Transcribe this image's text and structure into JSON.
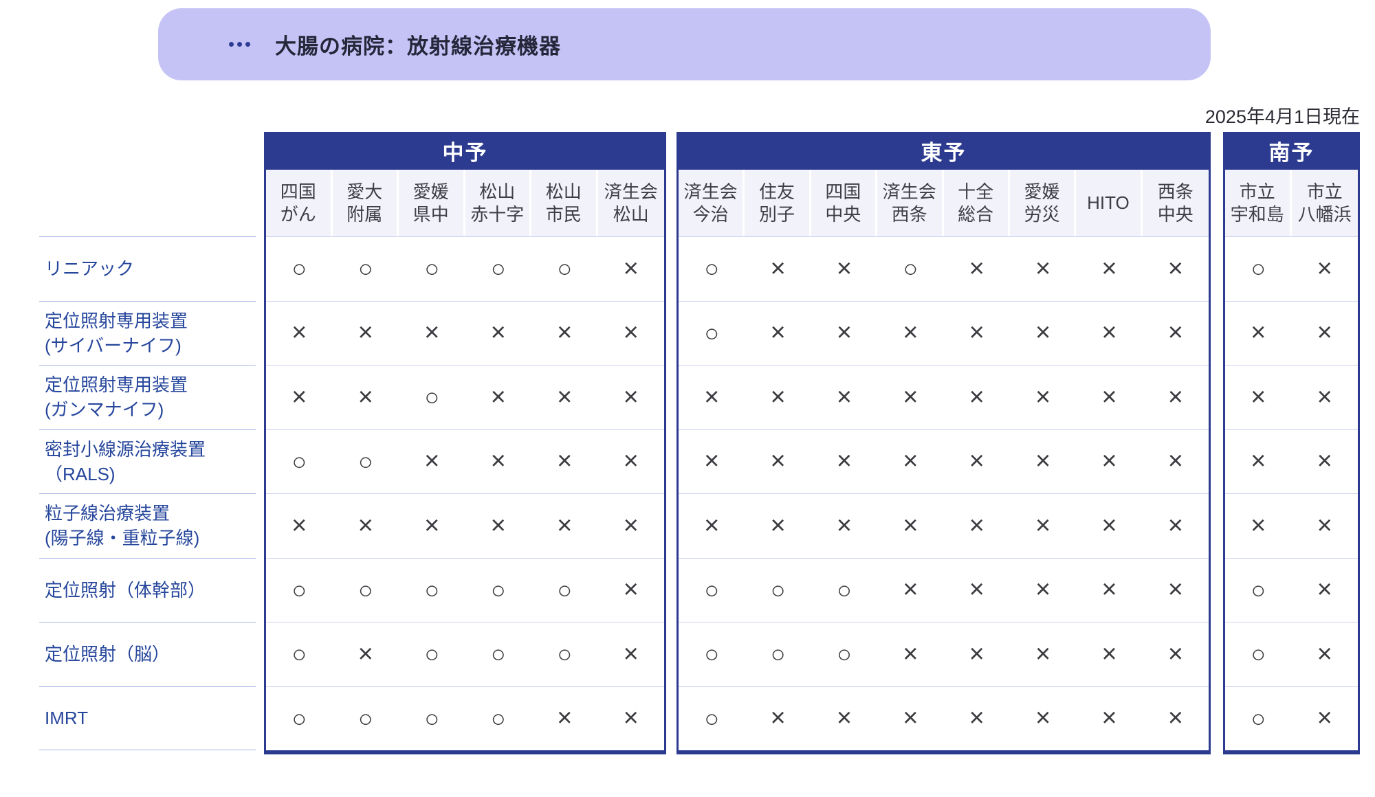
{
  "banner": {
    "title": "大腸の病院：放射線治療機器"
  },
  "date_label": "2025年4月1日現在",
  "colors": {
    "banner_bg": "#c5c3f6",
    "header_navy": "#2c3b90",
    "subheader_bg": "#f2f2fb",
    "row_label_blue": "#26469c",
    "row_separator": "#ccd1f0",
    "label_separator": "#aab3e3",
    "mark_color": "#3b3b40"
  },
  "groups": [
    {
      "name": "中予",
      "hospitals": [
        [
          "四国",
          "がん"
        ],
        [
          "愛大",
          "附属"
        ],
        [
          "愛媛",
          "県中"
        ],
        [
          "松山",
          "赤十字"
        ],
        [
          "松山",
          "市民"
        ],
        [
          "済生会",
          "松山"
        ]
      ]
    },
    {
      "name": "東予",
      "hospitals": [
        [
          "済生会",
          "今治"
        ],
        [
          "住友",
          "別子"
        ],
        [
          "四国",
          "中央"
        ],
        [
          "済生会",
          "西条"
        ],
        [
          "十全",
          "総合"
        ],
        [
          "愛媛",
          "労災"
        ],
        [
          "HITO"
        ],
        [
          "西条",
          "中央"
        ]
      ]
    },
    {
      "name": "南予",
      "hospitals": [
        [
          "市立",
          "宇和島"
        ],
        [
          "市立",
          "八幡浜"
        ]
      ]
    }
  ],
  "rows": [
    {
      "label": [
        "リニアック"
      ],
      "marks": [
        [
          "○",
          "○",
          "○",
          "○",
          "○",
          "×"
        ],
        [
          "○",
          "×",
          "×",
          "○",
          "×",
          "×",
          "×",
          "×"
        ],
        [
          "○",
          "×"
        ]
      ]
    },
    {
      "label": [
        "定位照射専用装置",
        "(サイバーナイフ)"
      ],
      "marks": [
        [
          "×",
          "×",
          "×",
          "×",
          "×",
          "×"
        ],
        [
          "○",
          "×",
          "×",
          "×",
          "×",
          "×",
          "×",
          "×"
        ],
        [
          "×",
          "×"
        ]
      ]
    },
    {
      "label": [
        "定位照射専用装置",
        "(ガンマナイフ)"
      ],
      "marks": [
        [
          "×",
          "×",
          "○",
          "×",
          "×",
          "×"
        ],
        [
          "×",
          "×",
          "×",
          "×",
          "×",
          "×",
          "×",
          "×"
        ],
        [
          "×",
          "×"
        ]
      ]
    },
    {
      "label": [
        "密封小線源治療装置",
        "（RALS)"
      ],
      "marks": [
        [
          "○",
          "○",
          "×",
          "×",
          "×",
          "×"
        ],
        [
          "×",
          "×",
          "×",
          "×",
          "×",
          "×",
          "×",
          "×"
        ],
        [
          "×",
          "×"
        ]
      ]
    },
    {
      "label": [
        "粒子線治療装置",
        "(陽子線・重粒子線)"
      ],
      "marks": [
        [
          "×",
          "×",
          "×",
          "×",
          "×",
          "×"
        ],
        [
          "×",
          "×",
          "×",
          "×",
          "×",
          "×",
          "×",
          "×"
        ],
        [
          "×",
          "×"
        ]
      ]
    },
    {
      "label": [
        "定位照射（体幹部）"
      ],
      "marks": [
        [
          "○",
          "○",
          "○",
          "○",
          "○",
          "×"
        ],
        [
          "○",
          "○",
          "○",
          "×",
          "×",
          "×",
          "×",
          "×"
        ],
        [
          "○",
          "×"
        ]
      ]
    },
    {
      "label": [
        "定位照射（脳）"
      ],
      "marks": [
        [
          "○",
          "×",
          "○",
          "○",
          "○",
          "×"
        ],
        [
          "○",
          "○",
          "○",
          "×",
          "×",
          "×",
          "×",
          "×"
        ],
        [
          "○",
          "×"
        ]
      ]
    },
    {
      "label": [
        "IMRT"
      ],
      "marks": [
        [
          "○",
          "○",
          "○",
          "○",
          "×",
          "×"
        ],
        [
          "○",
          "×",
          "×",
          "×",
          "×",
          "×",
          "×",
          "×"
        ],
        [
          "○",
          "×"
        ]
      ]
    }
  ]
}
